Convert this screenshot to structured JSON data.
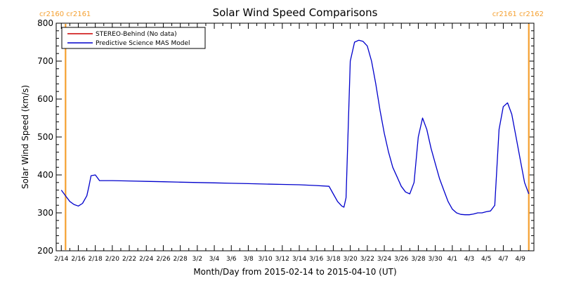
{
  "chart_data": {
    "type": "line",
    "title": "Solar Wind Speed Comparisons",
    "xlabel": "Month/Day from 2015-02-14 to 2015-04-10 (UT)",
    "ylabel": "Solar Wind Speed (km/s)",
    "x_range": [
      "2015-02-14",
      "2015-04-10"
    ],
    "ylim": [
      200,
      800
    ],
    "y_ticks": [
      200,
      300,
      400,
      500,
      600,
      700,
      800
    ],
    "x_ticks": [
      "2/14",
      "2/16",
      "2/18",
      "2/20",
      "2/22",
      "2/24",
      "2/26",
      "2/28",
      "3/2",
      "3/4",
      "3/6",
      "3/8",
      "3/10",
      "3/12",
      "3/14",
      "3/16",
      "3/18",
      "3/20",
      "3/22",
      "3/24",
      "3/26",
      "3/28",
      "3/30",
      "4/1",
      "4/3",
      "4/5",
      "4/7",
      "4/9"
    ],
    "legend_placement": "top-left",
    "legend": [
      {
        "label": "STEREO-Behind (No data)",
        "color": "#cc0000"
      },
      {
        "label": "Predictive Science MAS Model",
        "color": "#0000cc"
      }
    ],
    "carrington": {
      "left": "cr2160 cr2161",
      "right": "cr2161 cr2162",
      "color": "#f5a030",
      "boundaries": [
        "2015-02-14T12:00",
        "2015-04-10T00:00"
      ]
    },
    "series": [
      {
        "name": "Predictive Science MAS Model",
        "color": "#0000cc",
        "x": [
          "2015-02-14T00:00",
          "2015-02-14T12:00",
          "2015-02-15T00:00",
          "2015-02-15T12:00",
          "2015-02-16T00:00",
          "2015-02-16T12:00",
          "2015-02-17T00:00",
          "2015-02-17T06:00",
          "2015-02-17T12:00",
          "2015-02-18T00:00",
          "2015-02-18T12:00",
          "2015-02-20T00:00",
          "2015-02-22T00:00",
          "2015-02-24T00:00",
          "2015-02-26T00:00",
          "2015-02-28T00:00",
          "2015-03-02T00:00",
          "2015-03-04T00:00",
          "2015-03-06T00:00",
          "2015-03-08T00:00",
          "2015-03-10T00:00",
          "2015-03-12T00:00",
          "2015-03-14T00:00",
          "2015-03-16T00:00",
          "2015-03-17T12:00",
          "2015-03-18T00:00",
          "2015-03-18T12:00",
          "2015-03-19T00:00",
          "2015-03-19T06:00",
          "2015-03-19T12:00",
          "2015-03-20T00:00",
          "2015-03-20T12:00",
          "2015-03-21T00:00",
          "2015-03-21T12:00",
          "2015-03-22T00:00",
          "2015-03-22T12:00",
          "2015-03-23T00:00",
          "2015-03-23T12:00",
          "2015-03-24T00:00",
          "2015-03-24T12:00",
          "2015-03-25T00:00",
          "2015-03-25T12:00",
          "2015-03-26T00:00",
          "2015-03-26T12:00",
          "2015-03-27T00:00",
          "2015-03-27T12:00",
          "2015-03-28T00:00",
          "2015-03-28T12:00",
          "2015-03-29T00:00",
          "2015-03-29T12:00",
          "2015-03-30T00:00",
          "2015-03-30T12:00",
          "2015-03-31T00:00",
          "2015-03-31T12:00",
          "2015-04-01T00:00",
          "2015-04-01T12:00",
          "2015-04-02T00:00",
          "2015-04-02T12:00",
          "2015-04-03T00:00",
          "2015-04-03T12:00",
          "2015-04-04T00:00",
          "2015-04-04T12:00",
          "2015-04-05T00:00",
          "2015-04-05T12:00",
          "2015-04-06T00:00",
          "2015-04-06T12:00",
          "2015-04-07T00:00",
          "2015-04-07T12:00",
          "2015-04-08T00:00",
          "2015-04-08T12:00",
          "2015-04-09T00:00",
          "2015-04-09T12:00",
          "2015-04-10T00:00"
        ],
        "values": [
          360,
          345,
          330,
          322,
          318,
          325,
          345,
          370,
          398,
          400,
          385,
          385,
          384,
          383,
          382,
          381,
          380,
          379,
          378,
          377,
          376,
          375,
          374,
          372,
          370,
          350,
          330,
          318,
          315,
          340,
          700,
          750,
          755,
          752,
          740,
          700,
          640,
          570,
          510,
          460,
          420,
          395,
          370,
          355,
          350,
          380,
          500,
          550,
          520,
          470,
          430,
          390,
          360,
          330,
          310,
          300,
          296,
          295,
          295,
          297,
          300,
          300,
          303,
          305,
          320,
          520,
          580,
          590,
          560,
          500,
          440,
          380,
          350
        ]
      }
    ]
  }
}
